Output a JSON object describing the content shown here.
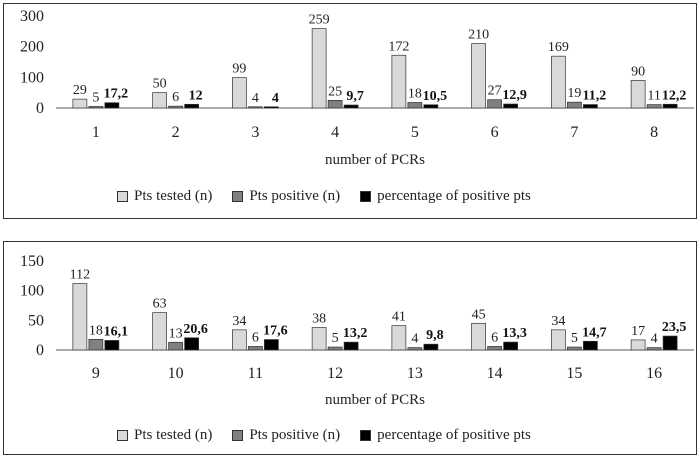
{
  "chart_data": [
    {
      "type": "bar",
      "categories": [
        "1",
        "2",
        "3",
        "4",
        "5",
        "6",
        "7",
        "8"
      ],
      "xlabel": "number of PCRs",
      "ylim": [
        0,
        300
      ],
      "yticks": [
        "0",
        "100",
        "200",
        "300"
      ],
      "series": [
        {
          "name": "Pts tested (n)",
          "color": "#d9d9d9",
          "values": [
            29,
            50,
            99,
            259,
            172,
            210,
            169,
            90
          ],
          "labels": [
            "29",
            "50",
            "99",
            "259",
            "172",
            "210",
            "169",
            "90"
          ]
        },
        {
          "name": "Pts positive (n)",
          "color": "#808080",
          "values": [
            5,
            6,
            4,
            25,
            18,
            27,
            19,
            11
          ],
          "labels": [
            "5",
            "6",
            "4",
            "25",
            "18",
            "27",
            "19",
            "11"
          ]
        },
        {
          "name": "percentage of positive pts",
          "color": "#000000",
          "values": [
            17.2,
            12,
            4,
            9.7,
            10.5,
            12.9,
            11.2,
            12.2
          ],
          "labels": [
            "17,2",
            "12",
            "4",
            "9,7",
            "10,5",
            "12,9",
            "11,2",
            "12,2"
          ]
        }
      ],
      "legend_position": "bottom"
    },
    {
      "type": "bar",
      "categories": [
        "9",
        "10",
        "11",
        "12",
        "13",
        "14",
        "15",
        "16"
      ],
      "xlabel": "number of PCRs",
      "ylim": [
        0,
        150
      ],
      "yticks": [
        "0",
        "50",
        "100",
        "150"
      ],
      "series": [
        {
          "name": "Pts tested (n)",
          "color": "#d9d9d9",
          "values": [
            112,
            63,
            34,
            38,
            41,
            45,
            34,
            17
          ],
          "labels": [
            "112",
            "63",
            "34",
            "38",
            "41",
            "45",
            "34",
            "17"
          ]
        },
        {
          "name": "Pts positive (n)",
          "color": "#808080",
          "values": [
            18,
            13,
            6,
            5,
            4,
            6,
            5,
            4
          ],
          "labels": [
            "18",
            "13",
            "6",
            "5",
            "4",
            "6",
            "5",
            "4"
          ]
        },
        {
          "name": "percentage of positive pts",
          "color": "#000000",
          "values": [
            16.1,
            20.6,
            17.6,
            13.2,
            9.8,
            13.3,
            14.7,
            23.5
          ],
          "labels": [
            "16,1",
            "20,6",
            "17,6",
            "13,2",
            "9,8",
            "13,3",
            "14,7",
            "23,5"
          ]
        }
      ],
      "legend_position": "bottom"
    }
  ]
}
